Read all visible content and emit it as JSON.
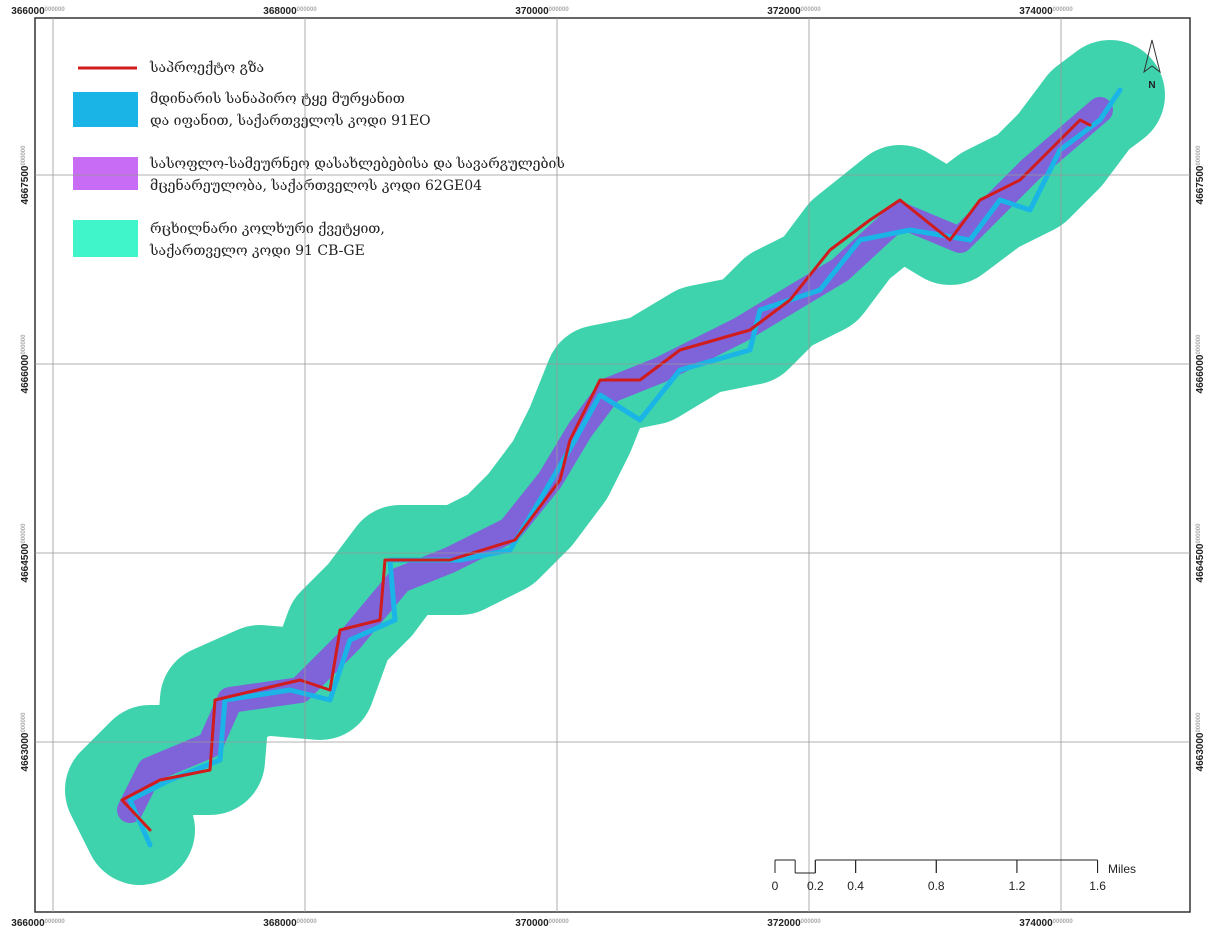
{
  "map": {
    "easting": [
      366000,
      368000,
      370000,
      372000,
      374000
    ],
    "northing": [
      4663000,
      4664500,
      4666000,
      4667500
    ],
    "coordinate_suffix": "000000",
    "north": "N",
    "legend": [
      {
        "lines": [
          "საპროექტო გზა"
        ]
      },
      {
        "lines": [
          "მდინარის სანაპირო ტყე მურყანით",
          "და იფანით, საქართველოს კოდი 91EO"
        ]
      },
      {
        "lines": [
          "სასოფლო-სამეურნეო დასახლებებისა და სავარგულების",
          "მცენარეულობა, საქართველოს კოდი 62GE04"
        ]
      },
      {
        "lines": [
          "რცხილნარი კოლხური ქვეტყით,",
          "საქართველო კოდი 91 CB-GE"
        ]
      }
    ],
    "scale_bar": {
      "ticks": [
        0,
        0.2,
        0.4,
        0.8,
        1.2,
        1.6
      ],
      "unit": "Miles"
    }
  }
}
